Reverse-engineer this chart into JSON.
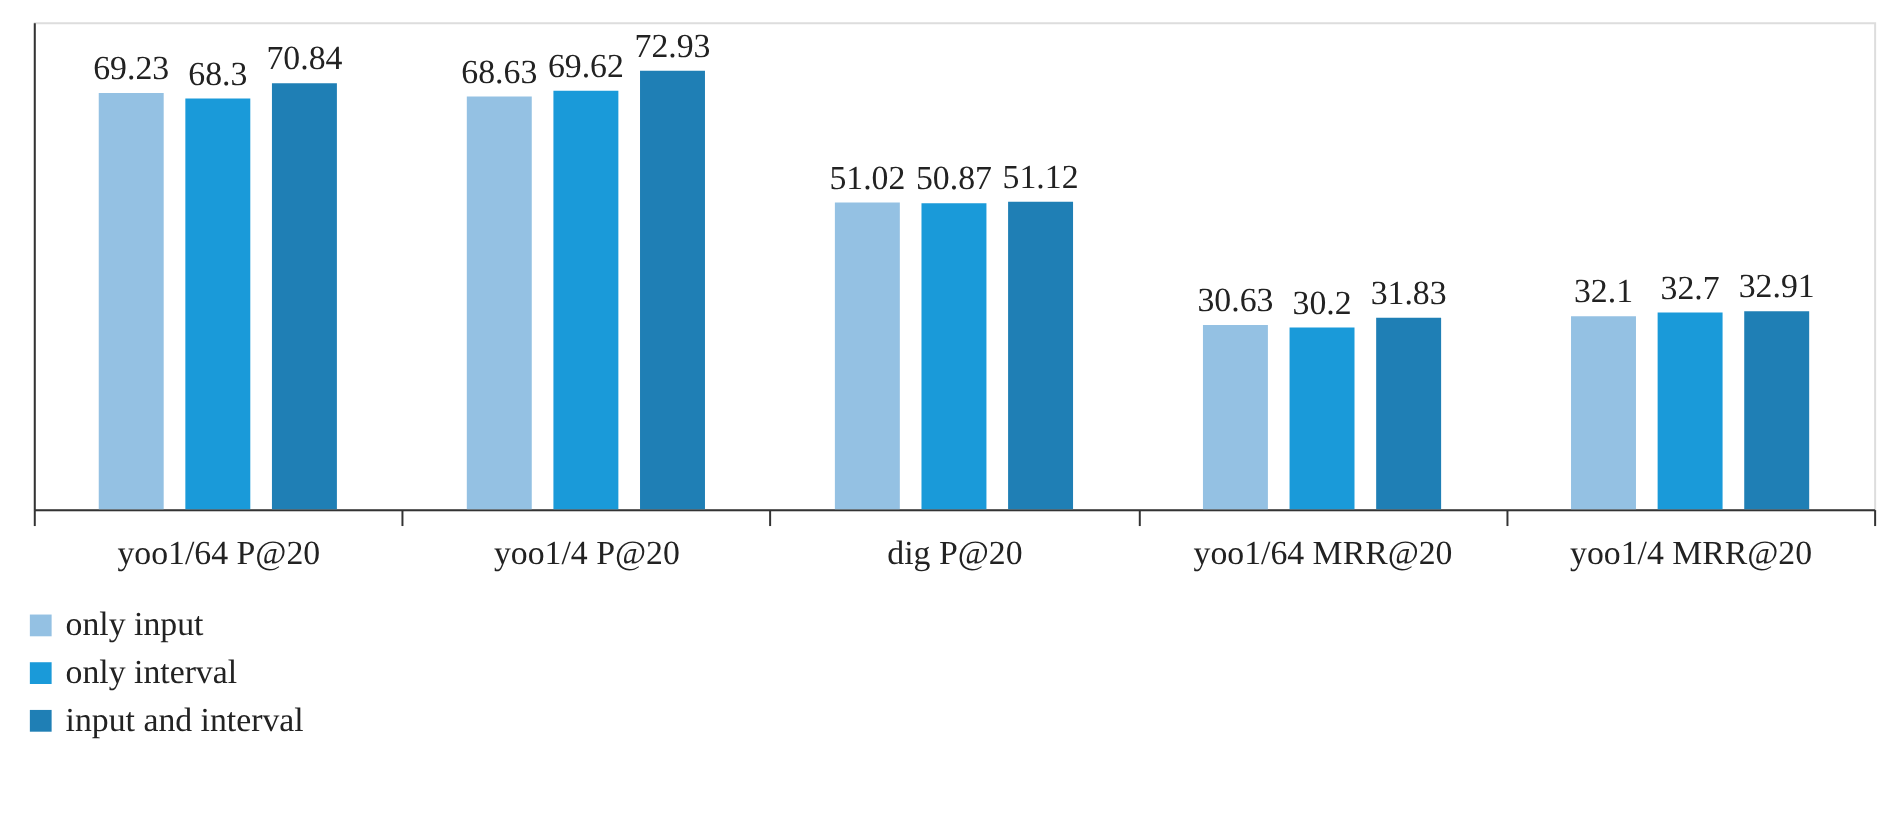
{
  "chart_data": {
    "type": "bar",
    "categories": [
      "yoo1/64 P@20",
      "yoo1/4 P@20",
      "dig P@20",
      "yoo1/64 MRR@20",
      "yoo1/4 MRR@20"
    ],
    "series": [
      {
        "name": "only input",
        "color": "#94c1e3",
        "values": [
          69.23,
          68.63,
          51.02,
          30.63,
          32.1
        ]
      },
      {
        "name": "only interval",
        "color": "#1a9ad9",
        "values": [
          68.3,
          69.62,
          50.87,
          30.2,
          32.7
        ]
      },
      {
        "name": "input and interval",
        "color": "#1f7fb5",
        "values": [
          70.84,
          72.93,
          51.12,
          31.83,
          32.91
        ]
      }
    ],
    "ylim": [
      0,
      81
    ],
    "data_labels": true,
    "tick_labels": "x",
    "grid": false,
    "legend": "bottom left"
  }
}
